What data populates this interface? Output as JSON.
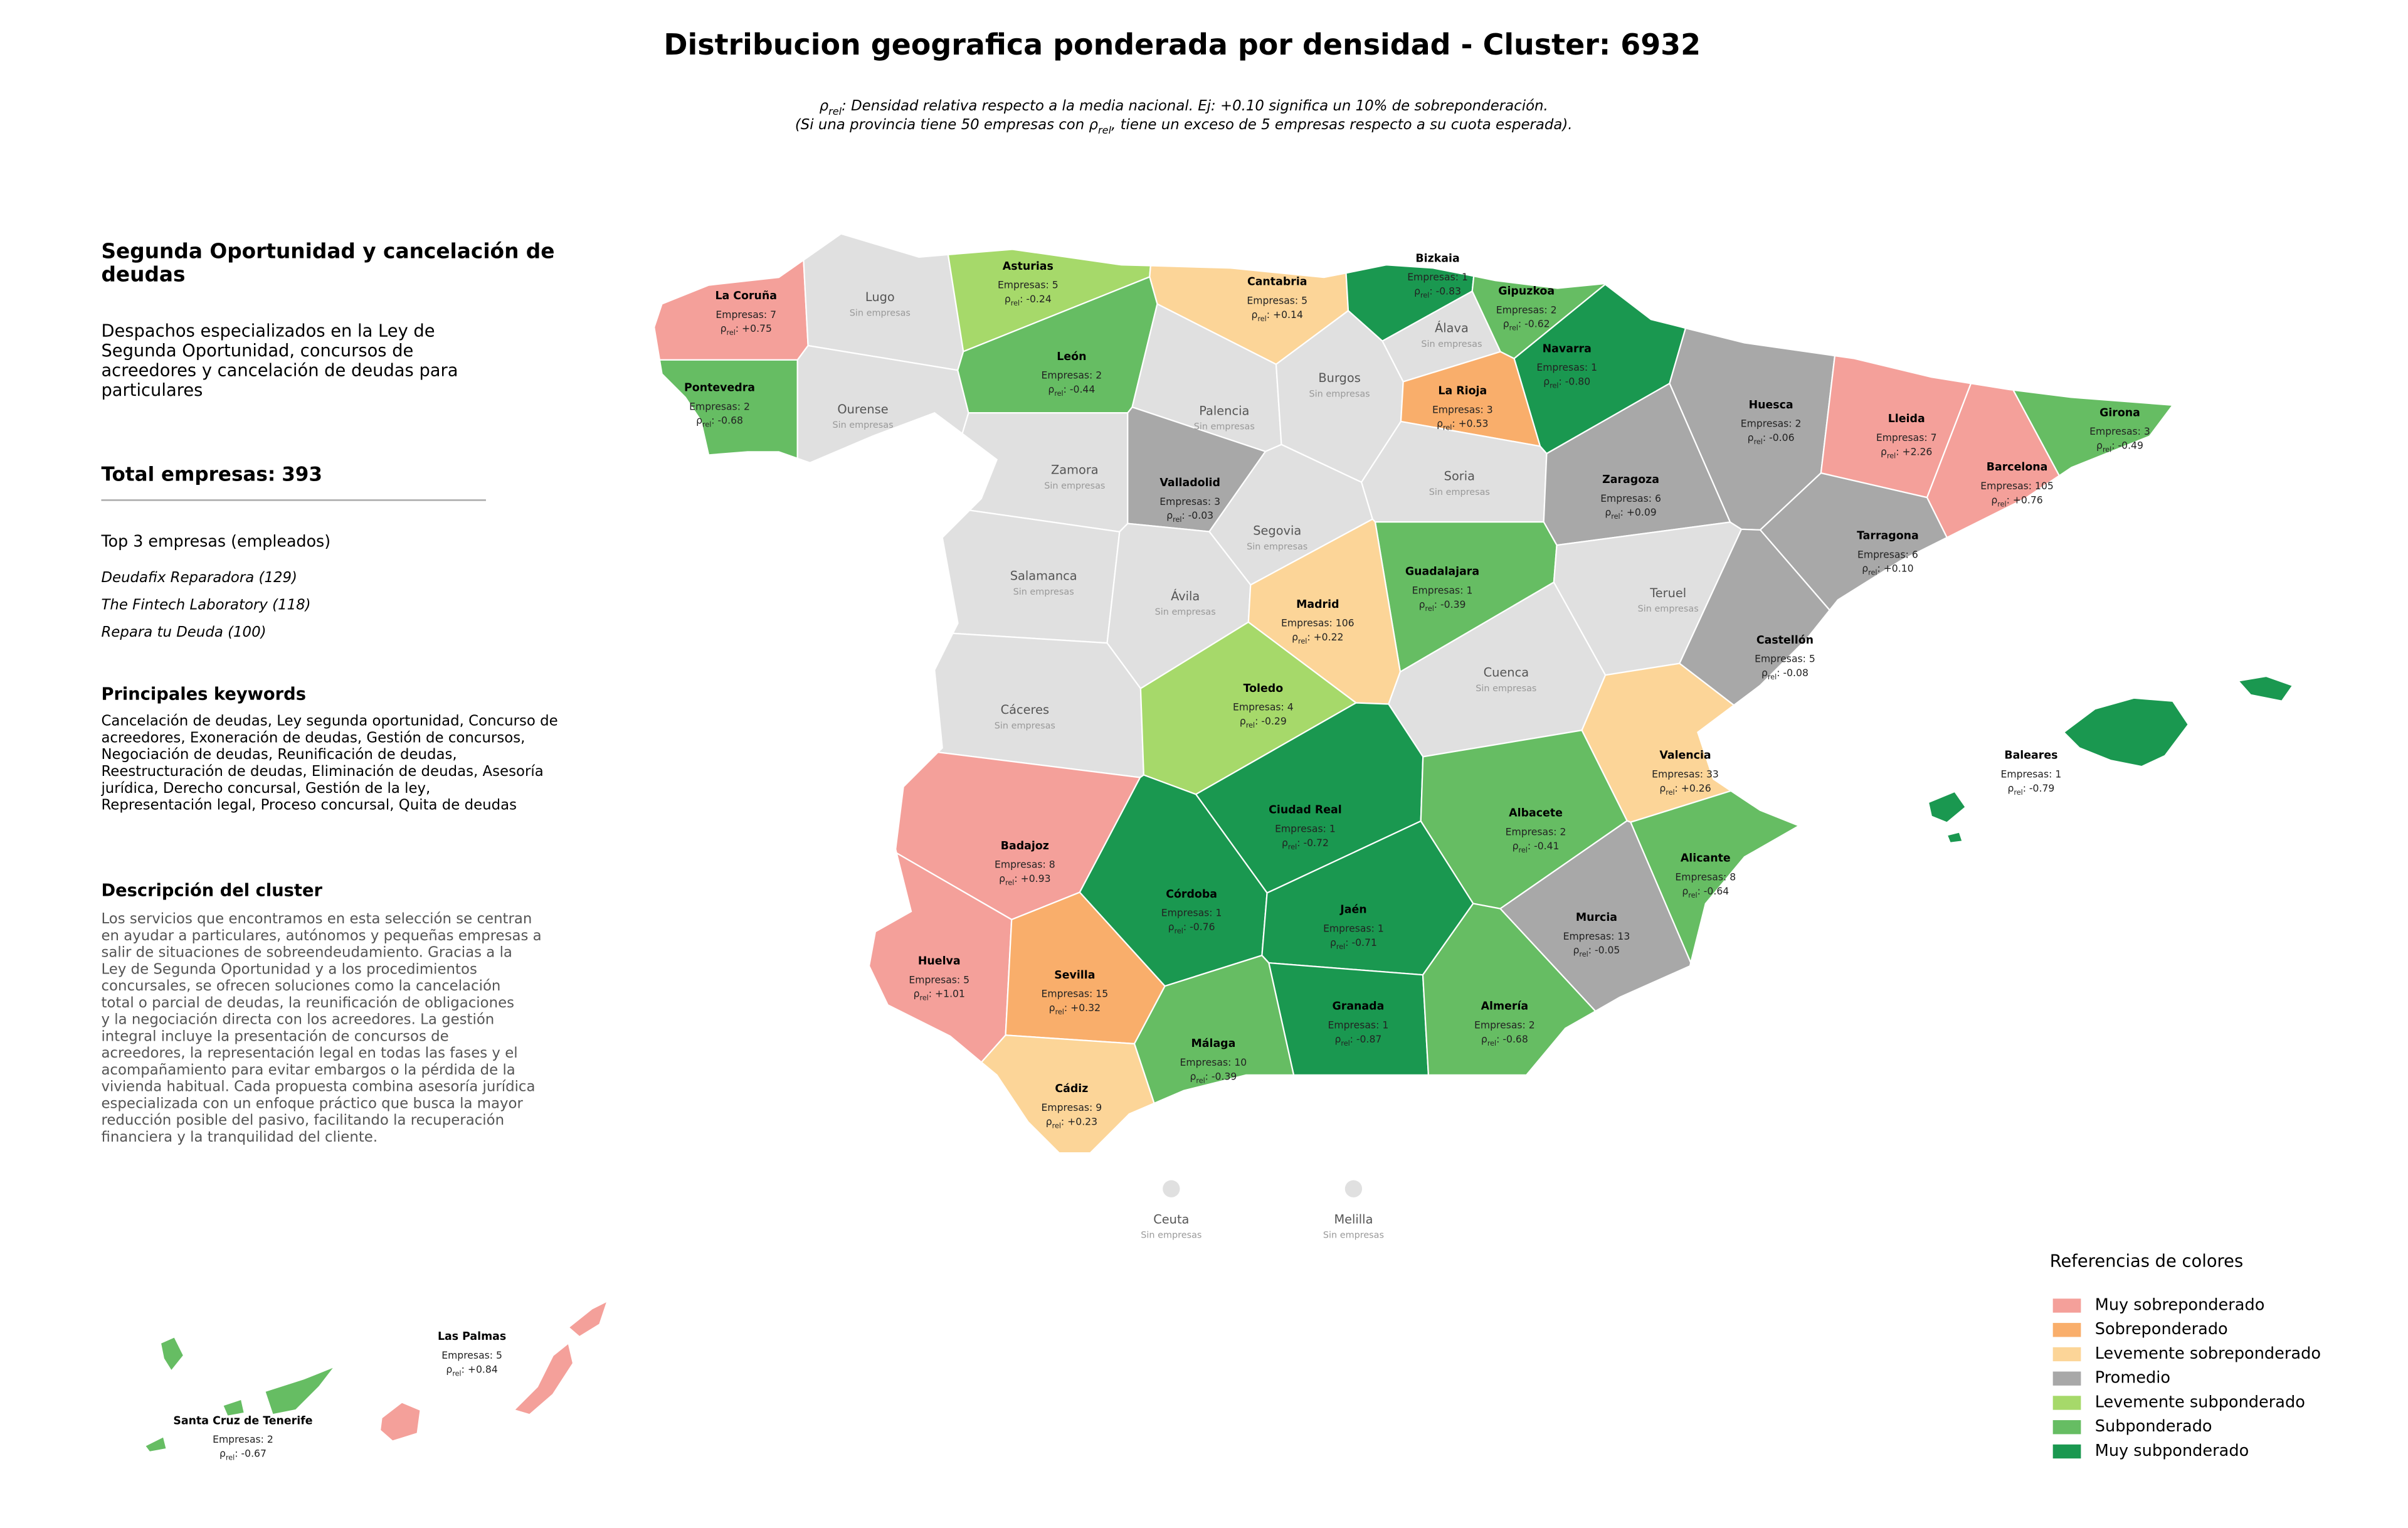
{
  "title": "Distribucion geografica ponderada por densidad - Cluster: 6932",
  "subtitle": [
    [
      {
        "text": "ρ"
      },
      {
        "text": "rel",
        "sub": true
      },
      {
        "text": ": Densidad relativa respecto a la media nacional. Ej: +0.10 significa un 10% de sobreponderación."
      }
    ],
    [
      {
        "text": "(Si una provincia tiene 50 empresas con "
      },
      {
        "text": "ρ"
      },
      {
        "text": "rel",
        "sub": true
      },
      {
        "text": ", tiene un exceso de 5 empresas respecto a su cuota esperada)."
      }
    ]
  ],
  "sidebar": {
    "heading": [
      "Segunda Oportunidad y cancelación de",
      "deudas"
    ],
    "summary": [
      "Despachos especializados en la Ley de",
      "Segunda Oportunidad, concursos de",
      "acreedores y cancelación de deudas para",
      "particulares"
    ],
    "total_label": "Total empresas:",
    "total": 393,
    "top_title": "Top 3 empresas (empleados)",
    "top": [
      "Deudafix Reparadora (129)",
      "The Fintech Laboratory (118)",
      "Repara tu Deuda (100)"
    ],
    "keywords_title": "Principales keywords",
    "keywords": [
      "Cancelación de deudas, Ley segunda oportunidad, Concurso de",
      "acreedores, Exoneración de deudas, Gestión de concursos,",
      "Negociación de deudas, Reunificación de deudas,",
      "Reestructuración de deudas, Eliminación de deudas, Asesoría",
      "jurídica, Derecho concursal, Gestión de la ley,",
      "Representación legal, Proceso concursal, Quita de deudas"
    ],
    "description_title": "Descripción del cluster",
    "description": [
      "Los servicios que encontramos en esta selección se centran",
      "en ayudar a particulares, autónomos y pequeñas empresas a",
      "salir de situaciones de sobreendeudamiento. Gracias a la",
      "Ley de Segunda Oportunidad y a los procedimientos",
      "concursales, se ofrecen soluciones como la cancelación",
      "total o parcial de deudas, la reunificación de obligaciones",
      "y la negociación directa con los acreedores. La gestión",
      "integral incluye la presentación de concursos de",
      "acreedores, la representación legal en todas las fases y el",
      "acompañamiento para evitar embargos o la pérdida de la",
      "vivienda habitual. Cada propuesta combina asesoría jurídica",
      "especializada con un enfoque práctico que busca la mayor",
      "reducción posible del pasivo, facilitando la recuperación",
      "financiera y la tranquilidad del cliente."
    ]
  },
  "map": {
    "count_label": "Empresas:",
    "rho_symbol": "ρ",
    "rho_subscript": "rel",
    "rho_separator": ":",
    "no_data_label": "Sin empresas",
    "no_data_color": "#e0e0e0",
    "provinces": [
      {
        "name": "La Coruña",
        "empresas": 7,
        "rho": 0.75,
        "rho_label": "+0.75",
        "color": "#f4a09a"
      },
      {
        "name": "Lugo"
      },
      {
        "name": "Pontevedra",
        "empresas": 2,
        "rho": -0.68,
        "rho_label": "-0.68",
        "color": "#66bd63"
      },
      {
        "name": "Ourense"
      },
      {
        "name": "Asturias",
        "empresas": 5,
        "rho": -0.24,
        "rho_label": "-0.24",
        "color": "#a6d96a"
      },
      {
        "name": "Cantabria",
        "empresas": 5,
        "rho": 0.14,
        "rho_label": "+0.14",
        "color": "#fcd598"
      },
      {
        "name": "Bizkaia",
        "empresas": 1,
        "rho": -0.83,
        "rho_label": "-0.83",
        "color": "#1a9850"
      },
      {
        "name": "Gipuzkoa",
        "empresas": 2,
        "rho": -0.62,
        "rho_label": "-0.62",
        "color": "#66bd63"
      },
      {
        "name": "Álava"
      },
      {
        "name": "Navarra",
        "empresas": 1,
        "rho": -0.8,
        "rho_label": "-0.80",
        "color": "#1a9850"
      },
      {
        "name": "León",
        "empresas": 2,
        "rho": -0.44,
        "rho_label": "-0.44",
        "color": "#66bd63"
      },
      {
        "name": "Palencia"
      },
      {
        "name": "Burgos"
      },
      {
        "name": "La Rioja",
        "empresas": 3,
        "rho": 0.53,
        "rho_label": "+0.53",
        "color": "#f9ae6b"
      },
      {
        "name": "Huesca",
        "empresas": 2,
        "rho": -0.06,
        "rho_label": "-0.06",
        "color": "#a8a8a8"
      },
      {
        "name": "Lleida",
        "empresas": 7,
        "rho": 2.26,
        "rho_label": "+2.26",
        "color": "#f4a09a"
      },
      {
        "name": "Girona",
        "empresas": 3,
        "rho": -0.49,
        "rho_label": "-0.49",
        "color": "#66bd63"
      },
      {
        "name": "Barcelona",
        "empresas": 105,
        "rho": 0.76,
        "rho_label": "+0.76",
        "color": "#f4a09a"
      },
      {
        "name": "Zamora"
      },
      {
        "name": "Valladolid",
        "empresas": 3,
        "rho": -0.03,
        "rho_label": "-0.03",
        "color": "#a8a8a8"
      },
      {
        "name": "Soria"
      },
      {
        "name": "Zaragoza",
        "empresas": 6,
        "rho": 0.09,
        "rho_label": "+0.09",
        "color": "#a8a8a8"
      },
      {
        "name": "Tarragona",
        "empresas": 6,
        "rho": 0.1,
        "rho_label": "+0.10",
        "color": "#a8a8a8"
      },
      {
        "name": "Segovia"
      },
      {
        "name": "Salamanca"
      },
      {
        "name": "Ávila"
      },
      {
        "name": "Guadalajara",
        "empresas": 1,
        "rho": -0.39,
        "rho_label": "-0.39",
        "color": "#66bd63"
      },
      {
        "name": "Madrid",
        "empresas": 106,
        "rho": 0.22,
        "rho_label": "+0.22",
        "color": "#fcd598"
      },
      {
        "name": "Teruel"
      },
      {
        "name": "Castellón",
        "empresas": 5,
        "rho": -0.08,
        "rho_label": "-0.08",
        "color": "#a8a8a8"
      },
      {
        "name": "Cáceres"
      },
      {
        "name": "Toledo",
        "empresas": 4,
        "rho": -0.29,
        "rho_label": "-0.29",
        "color": "#a6d96a"
      },
      {
        "name": "Cuenca"
      },
      {
        "name": "Valencia",
        "empresas": 33,
        "rho": 0.26,
        "rho_label": "+0.26",
        "color": "#fcd598"
      },
      {
        "name": "Badajoz",
        "empresas": 8,
        "rho": 0.93,
        "rho_label": "+0.93",
        "color": "#f4a09a"
      },
      {
        "name": "Ciudad Real",
        "empresas": 1,
        "rho": -0.72,
        "rho_label": "-0.72",
        "color": "#1a9850"
      },
      {
        "name": "Albacete",
        "empresas": 2,
        "rho": -0.41,
        "rho_label": "-0.41",
        "color": "#66bd63"
      },
      {
        "name": "Alicante",
        "empresas": 8,
        "rho": -0.64,
        "rho_label": "-0.64",
        "color": "#66bd63"
      },
      {
        "name": "Córdoba",
        "empresas": 1,
        "rho": -0.76,
        "rho_label": "-0.76",
        "color": "#1a9850"
      },
      {
        "name": "Jaén",
        "empresas": 1,
        "rho": -0.71,
        "rho_label": "-0.71",
        "color": "#1a9850"
      },
      {
        "name": "Murcia",
        "empresas": 13,
        "rho": -0.05,
        "rho_label": "-0.05",
        "color": "#a8a8a8"
      },
      {
        "name": "Huelva",
        "empresas": 5,
        "rho": 1.01,
        "rho_label": "+1.01",
        "color": "#f4a09a"
      },
      {
        "name": "Sevilla",
        "empresas": 15,
        "rho": 0.32,
        "rho_label": "+0.32",
        "color": "#f9ae6b"
      },
      {
        "name": "Granada",
        "empresas": 1,
        "rho": -0.87,
        "rho_label": "-0.87",
        "color": "#1a9850"
      },
      {
        "name": "Almería",
        "empresas": 2,
        "rho": -0.68,
        "rho_label": "-0.68",
        "color": "#66bd63"
      },
      {
        "name": "Málaga",
        "empresas": 10,
        "rho": -0.39,
        "rho_label": "-0.39",
        "color": "#66bd63"
      },
      {
        "name": "Cádiz",
        "empresas": 9,
        "rho": 0.23,
        "rho_label": "+0.23",
        "color": "#fcd598"
      },
      {
        "name": "Baleares",
        "empresas": 1,
        "rho": -0.79,
        "rho_label": "-0.79",
        "color": "#1a9850"
      },
      {
        "name": "Las Palmas",
        "empresas": 5,
        "rho": 0.84,
        "rho_label": "+0.84",
        "color": "#f4a09a"
      },
      {
        "name": "Santa Cruz de Tenerife",
        "empresas": 2,
        "rho": -0.67,
        "rho_label": "-0.67",
        "color": "#66bd63"
      },
      {
        "name": "Ceuta"
      },
      {
        "name": "Melilla"
      }
    ]
  },
  "legend": {
    "title": "Referencias de colores",
    "items": [
      {
        "name": "Muy sobreponderado",
        "color": "#f4a09a"
      },
      {
        "name": "Sobreponderado",
        "color": "#f9ae6b"
      },
      {
        "name": "Levemente sobreponderado",
        "color": "#fcd598"
      },
      {
        "name": "Promedio",
        "color": "#a8a8a8"
      },
      {
        "name": "Levemente subponderado",
        "color": "#a6d96a"
      },
      {
        "name": "Subponderado",
        "color": "#66bd63"
      },
      {
        "name": "Muy subponderado",
        "color": "#1a9850"
      }
    ]
  }
}
